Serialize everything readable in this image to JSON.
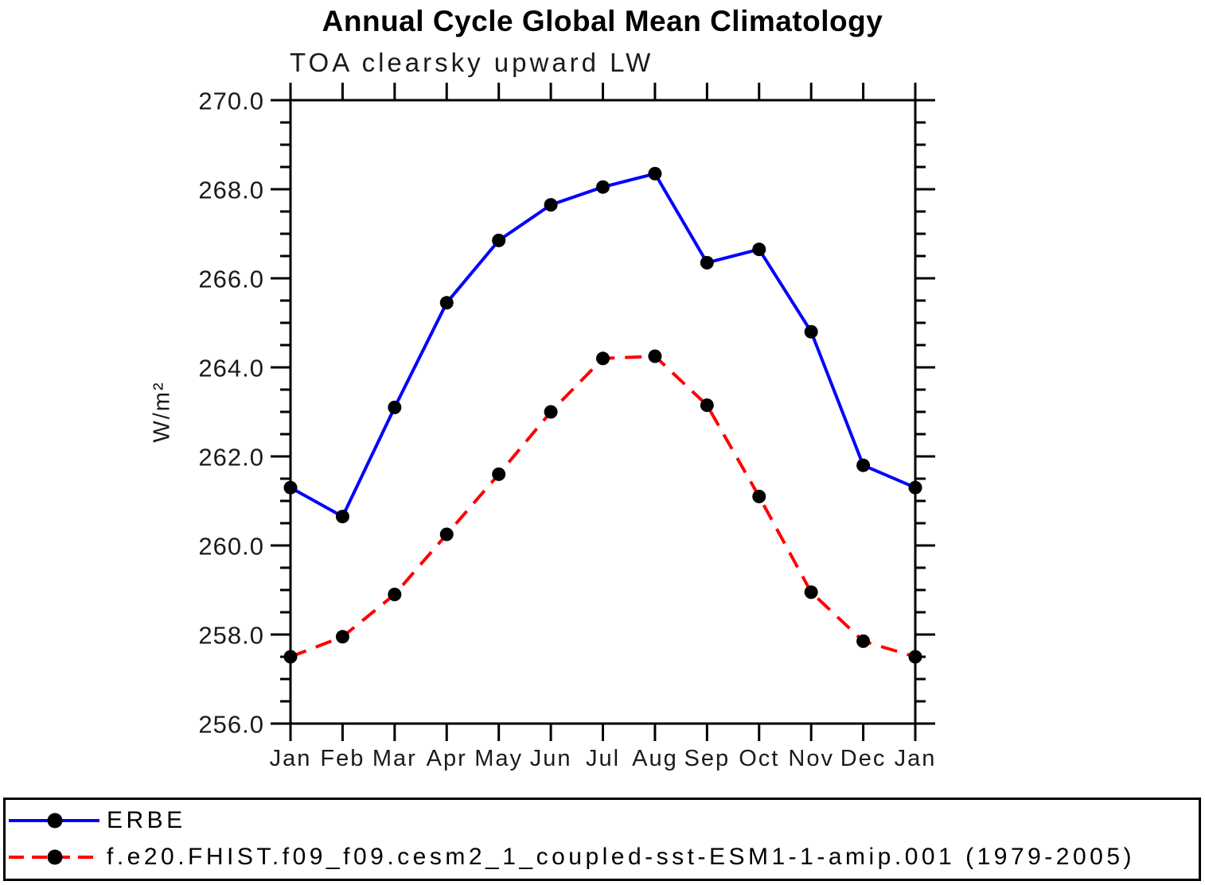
{
  "chart_data": {
    "type": "line",
    "title": "Annual Cycle Global Mean Climatology",
    "subtitle": "TOA clearsky upward LW",
    "ylabel": "W/m²",
    "xlabel": "",
    "x_tick_labels": [
      "Jan",
      "Feb",
      "Mar",
      "Apr",
      "May",
      "Jun",
      "Jul",
      "Aug",
      "Sep",
      "Oct",
      "Nov",
      "Dec",
      "Jan"
    ],
    "ylim": [
      256.0,
      270.0
    ],
    "y_major_step": 2.0,
    "y_minor_step": 0.5,
    "y_tick_labels": [
      "256.0",
      "258.0",
      "260.0",
      "262.0",
      "264.0",
      "266.0",
      "268.0",
      "270.0"
    ],
    "grid": false,
    "legend_position": "bottom-box",
    "axis_color": "#000000",
    "marker_color": "#000000",
    "series": [
      {
        "name": "ERBE",
        "color": "#0000ff",
        "style": "solid",
        "marker": "circle",
        "values": [
          261.3,
          260.65,
          263.1,
          265.45,
          266.85,
          267.65,
          268.05,
          268.35,
          266.35,
          266.65,
          264.8,
          261.8,
          261.3
        ]
      },
      {
        "name": "f.e20.FHIST.f09_f09.cesm2_1_coupled-sst-ESM1-1-amip.001 (1979-2005)",
        "color": "#ff0000",
        "style": "dashed",
        "marker": "circle",
        "values": [
          257.5,
          257.95,
          258.9,
          260.25,
          261.6,
          263.0,
          264.2,
          264.25,
          263.15,
          261.1,
          258.95,
          257.85,
          257.5
        ]
      }
    ]
  }
}
